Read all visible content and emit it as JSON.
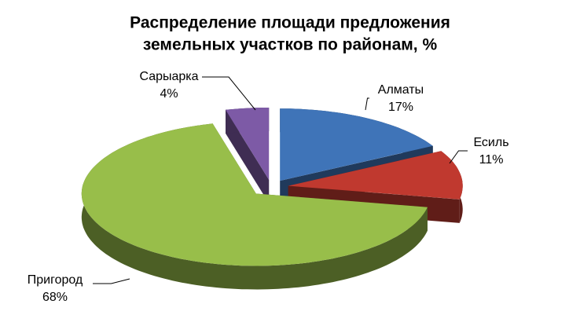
{
  "chart_data": {
    "type": "pie3d",
    "title": [
      "Распределение площади предложения",
      "земельных участков по районам, %"
    ],
    "categories": [
      "Алматы",
      "Есиль",
      "Пригород",
      "Сарыарка"
    ],
    "values": [
      17,
      11,
      68,
      4
    ],
    "value_labels": [
      "17%",
      "11%",
      "68%",
      "4%"
    ],
    "colors": [
      "#3f74b8",
      "#c0392f",
      "#98be4a",
      "#7d5aa6"
    ]
  }
}
